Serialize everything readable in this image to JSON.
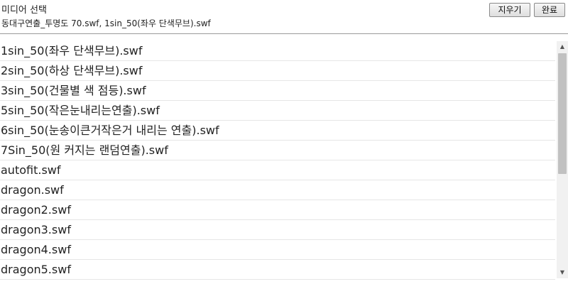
{
  "header": {
    "title": "미디어 선택",
    "selected_text": "동대구연출_투명도 70.swf, 1sin_50(좌우 단색무브).swf",
    "clear_button": "지우기",
    "done_button": "완료"
  },
  "files": [
    "1sin_50(좌우 단색무브).swf",
    "2sin_50(하상 단색무브).swf",
    "3sin_50(건물별 색 점등).swf",
    "5sin_50(작은눈내리는연출).swf",
    "6sin_50(눈송이큰거작은거 내리는 연출).swf",
    "7Sin_50(원 커지는 랜덤연출).swf",
    "autofit.swf",
    "dragon.swf",
    "dragon2.swf",
    "dragon3.swf",
    "dragon4.swf",
    "dragon5.swf"
  ],
  "scrollbar": {
    "up_icon": "▲",
    "down_icon": "▼"
  }
}
